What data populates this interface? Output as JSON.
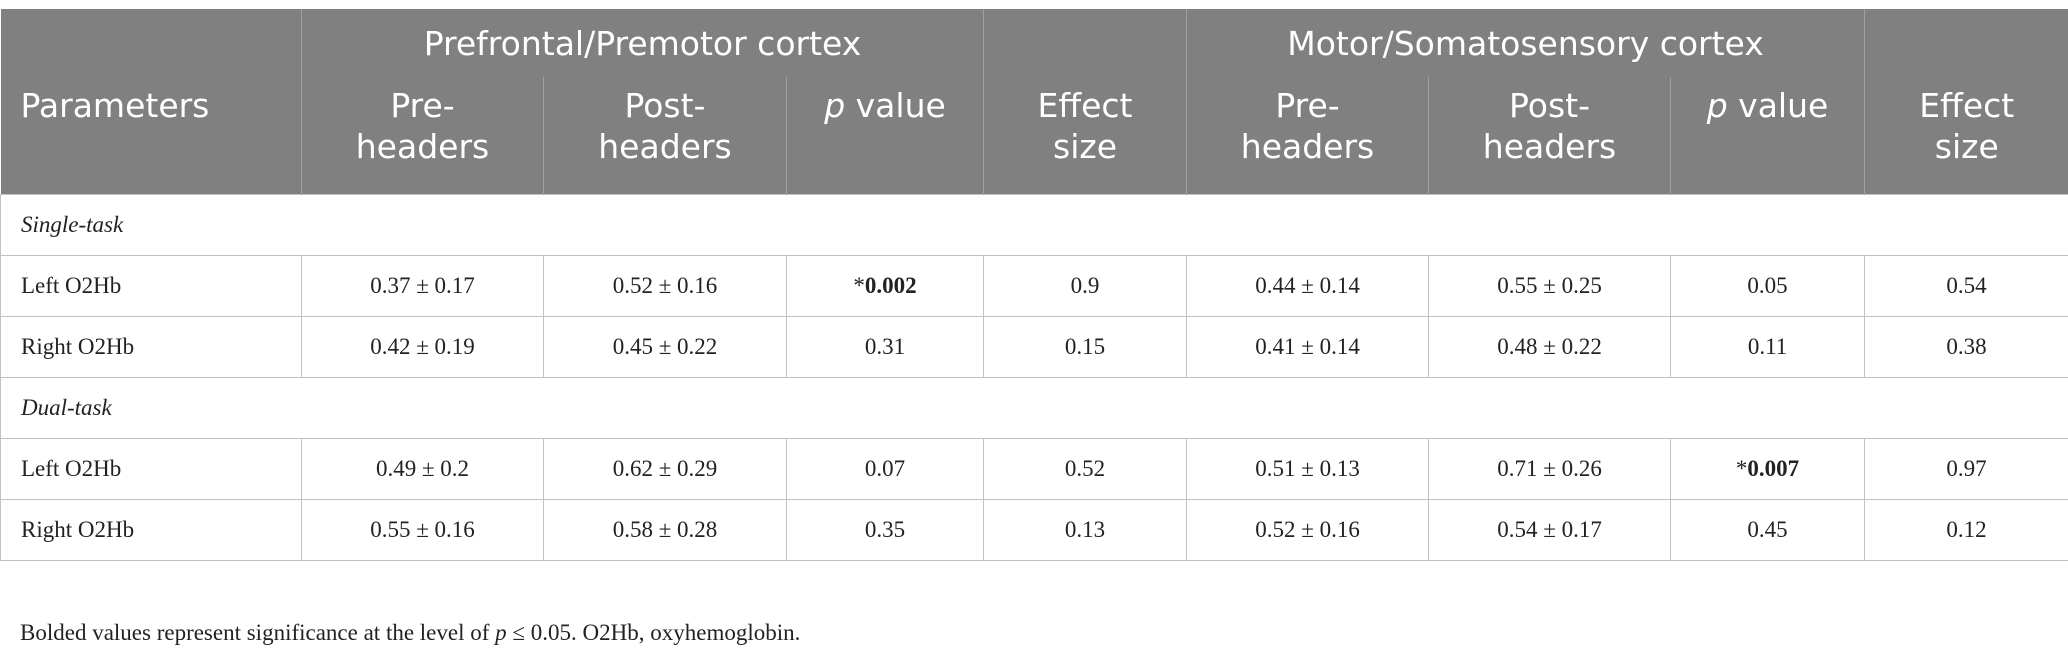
{
  "table": {
    "header_groups": [
      "Prefrontal/Premotor cortex",
      "Motor/Somatosensory cortex"
    ],
    "columns": [
      [
        {
          "text": "Parameters"
        }
      ],
      [
        {
          "text": "Pre-"
        },
        {
          "text": "headers",
          "newline": true
        }
      ],
      [
        {
          "text": "Post-"
        },
        {
          "text": "headers",
          "newline": true
        }
      ],
      [
        {
          "text": "p",
          "italic": true
        },
        {
          "text": " value"
        }
      ],
      [
        {
          "text": "Effect"
        },
        {
          "text": "size",
          "newline": true
        }
      ],
      [
        {
          "text": "Pre-"
        },
        {
          "text": "headers",
          "newline": true
        }
      ],
      [
        {
          "text": "Post-"
        },
        {
          "text": "headers",
          "newline": true
        }
      ],
      [
        {
          "text": "p",
          "italic": true
        },
        {
          "text": " value"
        }
      ],
      [
        {
          "text": "Effect"
        },
        {
          "text": "size",
          "newline": true
        }
      ]
    ],
    "rows": [
      {
        "section": "Single-task"
      },
      {
        "cells": [
          "Left O2Hb",
          "0.37 ± 0.17",
          "0.52 ± 0.16",
          [
            {
              "text": "*"
            },
            {
              "text": "0.002",
              "bold": true
            }
          ],
          "0.9",
          "0.44 ± 0.14",
          "0.55 ± 0.25",
          "0.05",
          "0.54"
        ]
      },
      {
        "cells": [
          "Right O2Hb",
          "0.42 ± 0.19",
          "0.45 ± 0.22",
          "0.31",
          "0.15",
          "0.41 ± 0.14",
          "0.48 ± 0.22",
          "0.11",
          "0.38"
        ]
      },
      {
        "section": "Dual-task"
      },
      {
        "cells": [
          "Left O2Hb",
          "0.49 ± 0.2",
          "0.62 ± 0.29",
          "0.07",
          "0.52",
          "0.51 ± 0.13",
          "0.71 ± 0.26",
          [
            {
              "text": "*"
            },
            {
              "text": "0.007",
              "bold": true
            }
          ],
          "0.97"
        ]
      },
      {
        "cells": [
          "Right O2Hb",
          "0.55 ± 0.16",
          "0.58 ± 0.28",
          "0.35",
          "0.13",
          "0.52 ± 0.16",
          "0.54 ± 0.17",
          "0.45",
          "0.12"
        ]
      }
    ],
    "footnote": [
      {
        "text": "Bolded values represent significance at the level of "
      },
      {
        "text": "p",
        "italic": true
      },
      {
        "text": " ≤ 0.05. O2Hb, oxyhemoglobin."
      }
    ]
  }
}
